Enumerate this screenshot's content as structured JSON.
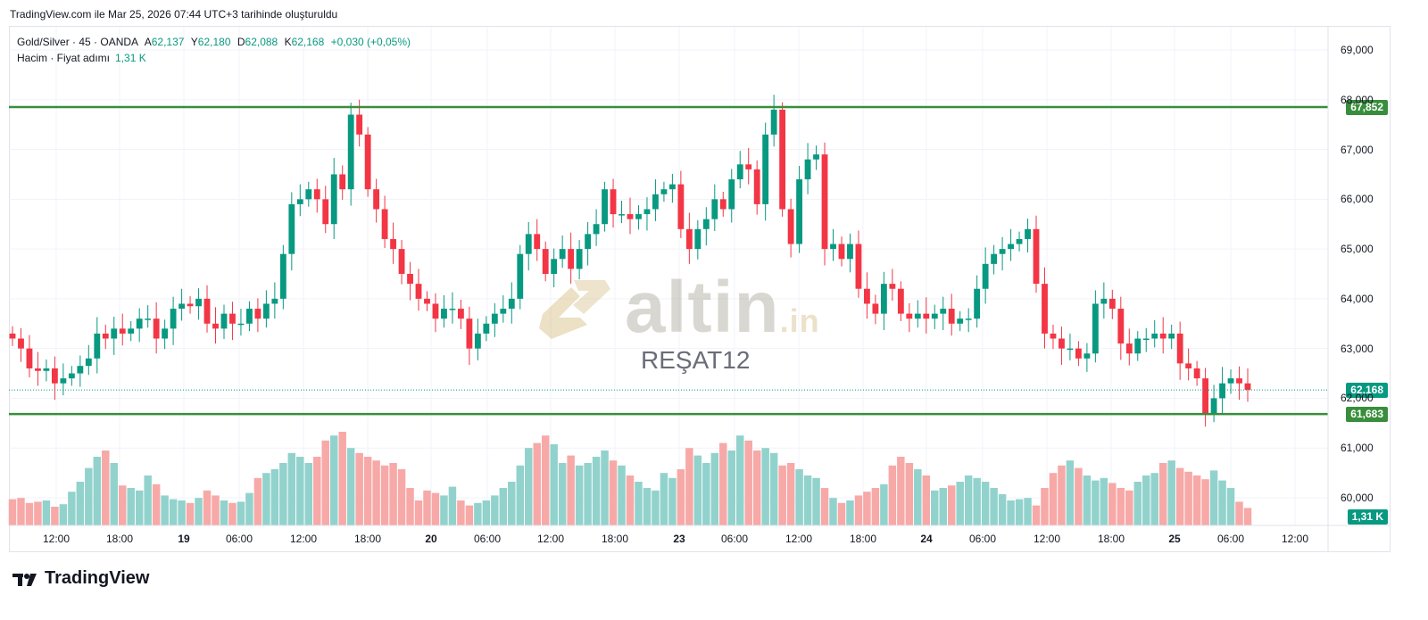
{
  "caption": "TradingView.com ile Mar 25, 2026 07:44 UTC+3 tarihinde oluşturuldu",
  "legend": {
    "symbol": "Gold/Silver · 45 · OANDA",
    "o_label": "A",
    "o_value": "62,137",
    "h_label": "Y",
    "h_value": "62,180",
    "l_label": "D",
    "l_value": "62,088",
    "c_label": "K",
    "c_value": "62,168",
    "change": "+0,030 (+0,05%)",
    "volume_label": "Hacim · Fiyat adımı",
    "volume_value": "1,31 K"
  },
  "watermark": {
    "brand": "altin",
    "suffix": ".in",
    "user": "REŞAT12"
  },
  "tags": {
    "resistance": "67,852",
    "last": "62,168",
    "support": "61,683",
    "volume": "1,31 K"
  },
  "brand": {
    "name": "TradingView"
  },
  "colors": {
    "up": "#089981",
    "down": "#f23645",
    "up_vol": "#92d2cc",
    "down_vol": "#f7a9a7",
    "line": "#388e3c"
  },
  "chart_data": {
    "type": "candlestick",
    "y_axis": {
      "range": [
        59.6,
        69.8
      ],
      "ticks": [
        69.0,
        68.0,
        67.0,
        66.0,
        65.0,
        64.0,
        63.0,
        62.0,
        61.0,
        60.0
      ],
      "tick_labels": [
        "69,000",
        "68,000",
        "67,000",
        "66,000",
        "65,000",
        "64,000",
        "63,000",
        "62,000",
        "61,000",
        "60,000"
      ]
    },
    "x_axis": {
      "labels": [
        "12:00",
        "18:00",
        "19",
        "06:00",
        "12:00",
        "18:00",
        "20",
        "06:00",
        "12:00",
        "18:00",
        "23",
        "06:00",
        "12:00",
        "18:00",
        "24",
        "06:00",
        "12:00",
        "18:00",
        "25",
        "06:00",
        "12:00"
      ]
    },
    "horizontal_lines": [
      67.852,
      61.683
    ],
    "last_price": 62.168,
    "closes": [
      63.2,
      63.0,
      62.6,
      62.55,
      62.6,
      62.3,
      62.4,
      62.5,
      62.65,
      62.8,
      63.3,
      63.2,
      63.4,
      63.3,
      63.4,
      63.6,
      63.6,
      63.2,
      63.4,
      63.8,
      63.9,
      63.85,
      64.0,
      63.5,
      63.4,
      63.7,
      63.5,
      63.5,
      63.8,
      63.6,
      63.9,
      64.0,
      64.9,
      65.9,
      66.0,
      66.2,
      66.0,
      65.5,
      66.5,
      66.2,
      67.7,
      67.3,
      66.2,
      65.8,
      65.2,
      65.0,
      64.5,
      64.3,
      64.0,
      63.9,
      63.6,
      63.8,
      63.8,
      63.6,
      63.0,
      63.3,
      63.5,
      63.7,
      63.8,
      64.0,
      64.9,
      65.3,
      65.0,
      64.5,
      64.8,
      65.0,
      64.6,
      65.0,
      65.3,
      65.5,
      66.2,
      65.7,
      65.7,
      65.6,
      65.7,
      65.8,
      66.1,
      66.2,
      66.3,
      65.4,
      65.0,
      65.4,
      65.6,
      66.0,
      65.8,
      66.4,
      66.7,
      66.6,
      65.9,
      67.3,
      67.8,
      65.8,
      65.1,
      66.4,
      66.8,
      66.9,
      65.0,
      65.1,
      64.8,
      65.1,
      64.2,
      63.9,
      63.7,
      64.3,
      64.2,
      63.7,
      63.6,
      63.7,
      63.6,
      63.7,
      63.8,
      63.5,
      63.6,
      63.6,
      64.2,
      64.7,
      64.9,
      65.0,
      65.1,
      65.2,
      65.4,
      64.3,
      63.3,
      63.2,
      63.0,
      63.0,
      62.8,
      62.9,
      63.9,
      64.0,
      63.8,
      63.1,
      62.9,
      63.2,
      63.2,
      63.3,
      63.2,
      63.3,
      62.7,
      62.6,
      62.4,
      61.7,
      62.0,
      62.3,
      62.4,
      62.3,
      62.17
    ],
    "volume_scale": [
      0.0,
      1.0
    ],
    "volumes": [
      0.21,
      0.22,
      0.18,
      0.19,
      0.2,
      0.15,
      0.17,
      0.27,
      0.35,
      0.46,
      0.55,
      0.6,
      0.5,
      0.32,
      0.3,
      0.28,
      0.4,
      0.33,
      0.24,
      0.21,
      0.2,
      0.18,
      0.22,
      0.28,
      0.24,
      0.2,
      0.18,
      0.19,
      0.26,
      0.38,
      0.42,
      0.45,
      0.5,
      0.58,
      0.55,
      0.5,
      0.55,
      0.68,
      0.72,
      0.75,
      0.62,
      0.58,
      0.55,
      0.52,
      0.48,
      0.5,
      0.45,
      0.3,
      0.2,
      0.28,
      0.26,
      0.24,
      0.31,
      0.2,
      0.16,
      0.18,
      0.2,
      0.24,
      0.3,
      0.35,
      0.48,
      0.62,
      0.66,
      0.72,
      0.65,
      0.5,
      0.56,
      0.48,
      0.5,
      0.55,
      0.6,
      0.52,
      0.48,
      0.4,
      0.35,
      0.3,
      0.28,
      0.42,
      0.38,
      0.45,
      0.62,
      0.56,
      0.5,
      0.58,
      0.66,
      0.6,
      0.72,
      0.68,
      0.6,
      0.62,
      0.58,
      0.48,
      0.5,
      0.45,
      0.4,
      0.38,
      0.3,
      0.22,
      0.18,
      0.2,
      0.24,
      0.27,
      0.3,
      0.33,
      0.48,
      0.55,
      0.5,
      0.45,
      0.4,
      0.28,
      0.3,
      0.32,
      0.35,
      0.4,
      0.38,
      0.35,
      0.3,
      0.25,
      0.2,
      0.21,
      0.22,
      0.16,
      0.3,
      0.42,
      0.48,
      0.52,
      0.46,
      0.4,
      0.36,
      0.38,
      0.34,
      0.3,
      0.28,
      0.35,
      0.4,
      0.42,
      0.5,
      0.52,
      0.46,
      0.43,
      0.4,
      0.37,
      0.44,
      0.36,
      0.3,
      0.19,
      0.14,
      0.05
    ]
  }
}
